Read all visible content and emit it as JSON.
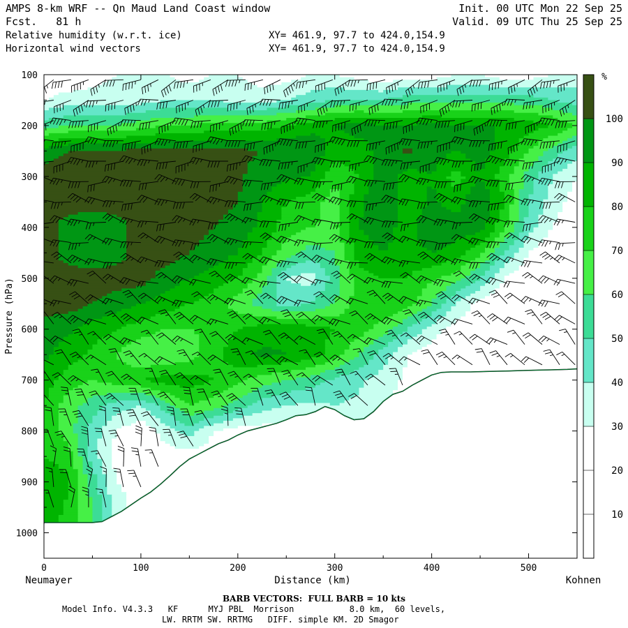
{
  "header": {
    "title": "AMPS 8-km WRF -- Qn Maud Land Coast window",
    "forecast": "Fcst.   81 h",
    "init": "Init. 00 UTC Mon 22 Sep 25",
    "valid": "Valid. 09 UTC Thu 25 Sep 25",
    "field1": "Relative humidity (w.r.t. ice)",
    "field2": "Horizontal wind vectors",
    "xy1": "XY= 461.9, 97.7 to 424.0,154.9",
    "xy2": "XY= 461.9, 97.7 to 424.0,154.9"
  },
  "footer": {
    "barb_note": "BARB VECTORS:  FULL BARB = 10 kts",
    "model_info": "Model Info. V4.3.3   KF      MYJ PBL  Morrison           8.0 km,  60 levels,",
    "physics": "LW. RRTM SW. RRTMG   DIFF. simple KM. 2D Smagor"
  },
  "chart_data": {
    "type": "heatmap",
    "xlabel": "Distance (km)",
    "ylabel": "Pressure (hPa)",
    "xlim": [
      0,
      550
    ],
    "ylim": [
      1050,
      100
    ],
    "x_ticks": [
      0,
      100,
      200,
      300,
      400,
      500
    ],
    "y_ticks": [
      100,
      200,
      300,
      400,
      500,
      600,
      700,
      800,
      900,
      1000
    ],
    "x_endpoint_labels": {
      "left": "Neumayer",
      "right": "Kohnen"
    },
    "colorbar": {
      "unit": "%",
      "bounds": [
        0,
        10,
        20,
        30,
        40,
        50,
        60,
        70,
        80,
        90,
        100,
        110
      ],
      "labels": [
        10,
        20,
        30,
        40,
        50,
        60,
        70,
        80,
        90,
        100
      ],
      "colors": [
        "#ffffff",
        "#ffffff",
        "#ffffff",
        "#c8fff0",
        "#64e6c8",
        "#3cdc96",
        "#46f046",
        "#19d219",
        "#00b400",
        "#009614",
        "#375014"
      ]
    },
    "terrain_surface": {
      "distance_km": [
        0,
        10,
        20,
        30,
        40,
        50,
        60,
        70,
        80,
        90,
        100,
        110,
        120,
        130,
        140,
        150,
        160,
        170,
        180,
        190,
        200,
        210,
        220,
        230,
        240,
        250,
        260,
        270,
        280,
        290,
        300,
        310,
        320,
        330,
        340,
        350,
        360,
        370,
        380,
        390,
        400,
        410,
        420,
        440,
        460,
        480,
        500,
        520,
        540,
        550
      ],
      "pressure_hpa": [
        980,
        980,
        980,
        980,
        980,
        980,
        978,
        968,
        958,
        945,
        932,
        920,
        905,
        888,
        870,
        855,
        845,
        835,
        825,
        818,
        808,
        800,
        795,
        790,
        785,
        778,
        770,
        768,
        762,
        752,
        758,
        770,
        778,
        776,
        762,
        742,
        728,
        722,
        710,
        700,
        690,
        685,
        684,
        684,
        683,
        682,
        681,
        680,
        679,
        678
      ]
    },
    "rh_field": {
      "field": "Relative humidity (w.r.t. ice)",
      "unit": "%",
      "x_km": [
        0,
        25,
        50,
        75,
        100,
        125,
        150,
        175,
        200,
        225,
        250,
        275,
        300,
        325,
        350,
        375,
        400,
        425,
        450,
        475,
        500,
        525,
        550
      ],
      "p_hpa": [
        100,
        150,
        200,
        250,
        300,
        350,
        400,
        450,
        500,
        550,
        600,
        650,
        700,
        750,
        800,
        850,
        900,
        950,
        1000
      ],
      "rh": [
        [
          20,
          20,
          25,
          30,
          30,
          30,
          25,
          30,
          30,
          25,
          25,
          30,
          30,
          25,
          20,
          25,
          25,
          30,
          30,
          25,
          25,
          30,
          35
        ],
        [
          30,
          35,
          35,
          35,
          35,
          40,
          40,
          40,
          35,
          35,
          40,
          45,
          50,
          50,
          50,
          55,
          55,
          55,
          55,
          55,
          55,
          50,
          45
        ],
        [
          55,
          60,
          60,
          60,
          65,
          70,
          70,
          75,
          75,
          75,
          80,
          85,
          90,
          95,
          90,
          90,
          95,
          90,
          90,
          90,
          85,
          80,
          70
        ],
        [
          95,
          100,
          102,
          102,
          102,
          102,
          102,
          102,
          102,
          100,
          100,
          100,
          85,
          85,
          95,
          102,
          95,
          90,
          95,
          85,
          70,
          55,
          45
        ],
        [
          105,
          105,
          105,
          105,
          105,
          105,
          105,
          105,
          102,
          95,
          92,
          90,
          72,
          80,
          98,
          85,
          90,
          75,
          90,
          75,
          55,
          40,
          30
        ],
        [
          105,
          105,
          105,
          105,
          105,
          105,
          105,
          105,
          100,
          90,
          80,
          75,
          65,
          88,
          100,
          80,
          92,
          85,
          100,
          80,
          50,
          35,
          25
        ],
        [
          105,
          95,
          92,
          95,
          105,
          105,
          105,
          100,
          95,
          88,
          75,
          70,
          68,
          90,
          95,
          85,
          100,
          95,
          95,
          72,
          45,
          30,
          20
        ],
        [
          105,
          95,
          92,
          95,
          105,
          105,
          100,
          95,
          90,
          80,
          65,
          55,
          60,
          85,
          90,
          85,
          90,
          85,
          72,
          50,
          30,
          20,
          15
        ],
        [
          105,
          105,
          105,
          105,
          105,
          95,
          90,
          85,
          80,
          65,
          40,
          35,
          55,
          75,
          80,
          80,
          72,
          65,
          50,
          30,
          20,
          15,
          15
        ],
        [
          105,
          105,
          100,
          95,
          90,
          85,
          80,
          75,
          65,
          55,
          45,
          50,
          60,
          75,
          80,
          75,
          60,
          40,
          25,
          20,
          15,
          15,
          15
        ],
        [
          95,
          92,
          85,
          80,
          75,
          70,
          70,
          72,
          80,
          85,
          88,
          85,
          80,
          75,
          65,
          50,
          35,
          25,
          20,
          15,
          15,
          15,
          15
        ],
        [
          92,
          85,
          78,
          70,
          60,
          60,
          65,
          75,
          88,
          92,
          90,
          85,
          75,
          60,
          45,
          30,
          25,
          20,
          15,
          15,
          15,
          15,
          15
        ],
        [
          85,
          75,
          70,
          75,
          80,
          85,
          85,
          80,
          72,
          65,
          60,
          55,
          48,
          42,
          35,
          28,
          20,
          15,
          15,
          15,
          15,
          15,
          15
        ],
        [
          80,
          65,
          55,
          45,
          40,
          55,
          70,
          65,
          55,
          45,
          40,
          38,
          40,
          38,
          30,
          25,
          20,
          15,
          15,
          15,
          15,
          15,
          15
        ],
        [
          78,
          65,
          45,
          30,
          22,
          35,
          45,
          30,
          25,
          25,
          25,
          25,
          25,
          25,
          25,
          25,
          25,
          25,
          25,
          25,
          25,
          25,
          25
        ],
        [
          80,
          75,
          45,
          25,
          20,
          25,
          25,
          25,
          25,
          25,
          25,
          25,
          25,
          25,
          25,
          25,
          25,
          25,
          25,
          25,
          25,
          25,
          25
        ],
        [
          88,
          82,
          55,
          30,
          25,
          25,
          25,
          25,
          25,
          25,
          25,
          25,
          25,
          25,
          25,
          25,
          25,
          25,
          25,
          25,
          25,
          25,
          25
        ],
        [
          88,
          78,
          60,
          35,
          25,
          25,
          25,
          25,
          25,
          25,
          25,
          25,
          25,
          25,
          25,
          25,
          25,
          25,
          25,
          25,
          25,
          25,
          25
        ],
        [
          85,
          75,
          60,
          40,
          30,
          25,
          25,
          25,
          25,
          25,
          25,
          25,
          25,
          25,
          25,
          25,
          25,
          25,
          25,
          25,
          25,
          25,
          25
        ]
      ]
    },
    "wind_barbs": {
      "note": "Horizontal wind vectors; full barb = 10 kts",
      "columns_km": [
        10,
        28,
        46,
        64,
        82,
        100,
        118,
        136,
        154,
        172,
        190,
        208,
        226,
        244,
        262,
        280,
        298,
        316,
        334,
        352,
        370,
        388,
        406,
        424,
        442,
        460,
        478,
        496,
        514,
        532,
        548
      ],
      "levels_hpa": [
        110,
        150,
        190,
        230,
        270,
        310,
        350,
        390,
        430,
        470,
        510,
        550,
        590,
        630,
        670,
        710,
        750,
        790,
        830,
        870,
        910,
        950
      ],
      "speed_kts_by_level": [
        40,
        40,
        45,
        45,
        40,
        35,
        35,
        30,
        30,
        30,
        25,
        25,
        25,
        20,
        20,
        20,
        25,
        25,
        25,
        20,
        20,
        20
      ],
      "direction_deg_by_level": [
        250,
        255,
        260,
        265,
        270,
        275,
        280,
        280,
        285,
        290,
        295,
        300,
        305,
        310,
        315,
        320,
        330,
        340,
        345,
        350,
        355,
        360
      ]
    }
  }
}
